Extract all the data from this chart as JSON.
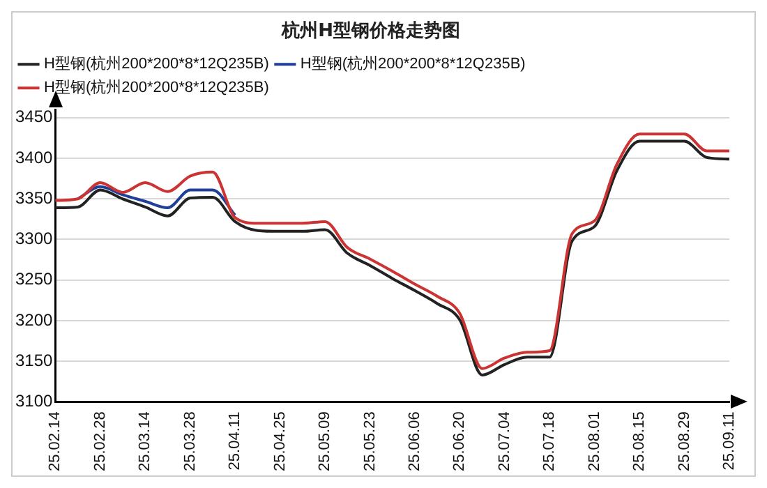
{
  "chart_data": {
    "type": "line",
    "title": "杭州H型钢价格走势图",
    "categories": [
      "25.02.14",
      null,
      "25.02.28",
      null,
      "25.03.14",
      null,
      "25.03.28",
      null,
      "25.04.11",
      null,
      "25.04.25",
      null,
      "25.05.09",
      null,
      "25.05.23",
      null,
      "25.06.06",
      null,
      "25.06.20",
      null,
      "25.07.04",
      null,
      "25.07.18",
      null,
      "25.08.01",
      null,
      "25.08.15",
      null,
      "25.08.29",
      null,
      "25.09.11"
    ],
    "series": [
      {
        "name": "H型钢(杭州200*200*8*12Q235B)",
        "color": "#222222",
        "values": [
          3339,
          3340,
          3361,
          3350,
          3340,
          3329,
          3351,
          3352,
          3322,
          3311,
          3310,
          3310,
          3312,
          3283,
          3268,
          3252,
          3237,
          3221,
          3201,
          3133,
          3146,
          3155,
          3155,
          3298,
          3316,
          3385,
          3421,
          3421,
          3421,
          3401,
          3399
        ]
      },
      {
        "name": "H型钢(杭州200*200*8*12Q235B)",
        "color": "#1f3f99",
        "values": [
          null,
          3350,
          3365,
          3355,
          3347,
          3339,
          3361,
          3361,
          3330,
          null,
          null,
          null,
          null,
          null,
          null,
          null,
          null,
          null,
          null,
          null,
          null,
          null,
          null,
          null,
          null,
          null,
          null,
          null,
          null,
          null,
          null
        ]
      },
      {
        "name": "H型钢(杭州200*200*8*12Q235B)",
        "color": "#cc3333",
        "values": [
          3348,
          3350,
          3370,
          3358,
          3370,
          3359,
          3378,
          3383,
          3327,
          3320,
          3320,
          3320,
          3322,
          3290,
          3276,
          3261,
          3245,
          3230,
          3209,
          3141,
          3154,
          3161,
          3163,
          3307,
          3323,
          3393,
          3430,
          3430,
          3430,
          3409,
          3409
        ]
      }
    ],
    "ylim": [
      3100,
      3460
    ],
    "yticks": [
      3100,
      3150,
      3200,
      3250,
      3300,
      3350,
      3400,
      3450
    ],
    "grid": "y",
    "legend": "top",
    "marker": "none",
    "line_style": "solid"
  }
}
